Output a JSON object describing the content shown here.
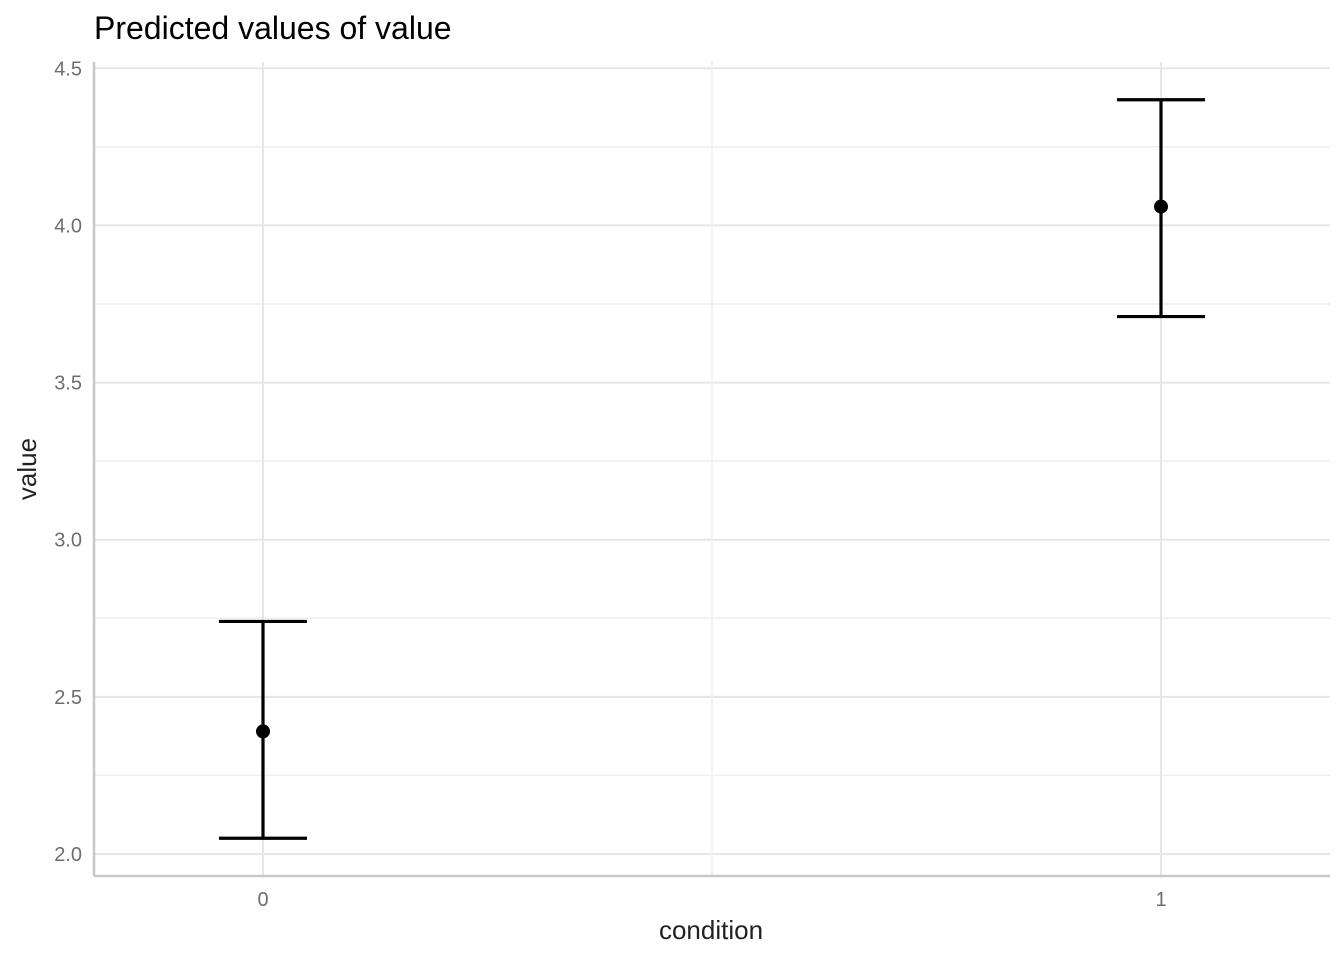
{
  "chart_data": {
    "type": "scatter",
    "title": "Predicted values of value",
    "xlabel": "condition",
    "ylabel": "value",
    "categories": [
      "0",
      "1"
    ],
    "series": [
      {
        "values": [
          2.39,
          4.06
        ],
        "ci_low": [
          2.05,
          3.71
        ],
        "ci_high": [
          2.74,
          4.4
        ]
      }
    ],
    "ylim": [
      1.93,
      4.52
    ],
    "yticks": [
      2.0,
      2.5,
      3.0,
      3.5,
      4.0,
      4.5
    ],
    "ytick_labels": [
      "2.0",
      "2.5",
      "3.0",
      "3.5",
      "4.0",
      "4.5"
    ],
    "grid": true,
    "legend": "none",
    "colors": {
      "marks": "#000000",
      "grid": "#e6e6e6",
      "axis": "#c8c8c8"
    }
  }
}
